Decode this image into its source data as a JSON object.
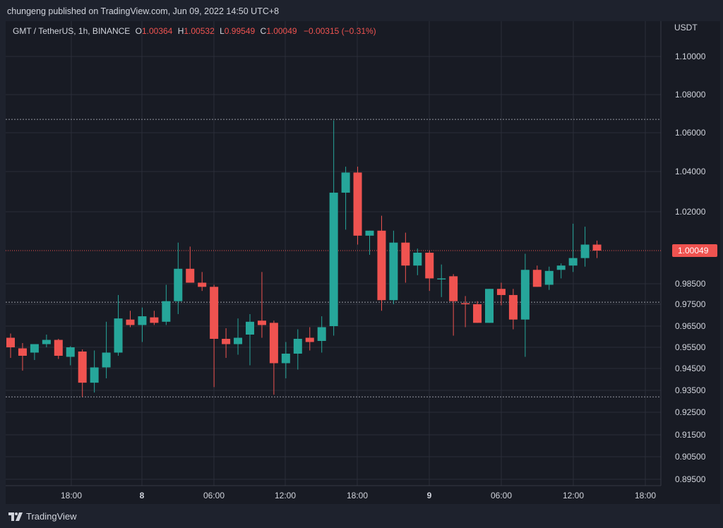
{
  "header": {
    "published": "chungeng published on TradingView.com, Jun 09, 2022 14:50 UTC+8"
  },
  "legend": {
    "symbol": "GMT / TetherUS, 1h, BINANCE",
    "o_label": "O",
    "o_value": "1.00364",
    "h_label": "H",
    "h_value": "1.00532",
    "l_label": "L",
    "l_value": "0.99549",
    "c_label": "C",
    "c_value": "1.00049",
    "change": "−0.00315 (−0.31%)"
  },
  "footer": {
    "brand": "TradingView"
  },
  "colors": {
    "up": "#26a69a",
    "down": "#ef5350",
    "grid": "#2a2e39",
    "price_line": "#ef5350",
    "hline": "#9598a1",
    "text": "#d1d4dc"
  },
  "chart_data": {
    "type": "candlestick",
    "currency": "USDT",
    "last_price": "1.00049",
    "y_ticks": [
      "1.10000",
      "1.08000",
      "1.06000",
      "1.04000",
      "1.02000",
      "0.98500",
      "0.97500",
      "0.96500",
      "0.95500",
      "0.94500",
      "0.93500",
      "0.92500",
      "0.91500",
      "0.90500",
      "0.89500"
    ],
    "x_ticks": [
      "18:00",
      "8",
      "06:00",
      "12:00",
      "18:00",
      "9",
      "06:00",
      "12:00",
      "18:00"
    ],
    "horizontal_lines": [
      1.067,
      0.976,
      0.932
    ],
    "ohlc": [
      [
        0.9595,
        0.9615,
        0.95,
        0.955
      ],
      [
        0.9545,
        0.957,
        0.944,
        0.951
      ],
      [
        0.9525,
        0.9565,
        0.949,
        0.9565
      ],
      [
        0.9565,
        0.961,
        0.955,
        0.9585
      ],
      [
        0.9585,
        0.959,
        0.9495,
        0.951
      ],
      [
        0.9505,
        0.9555,
        0.9465,
        0.955
      ],
      [
        0.953,
        0.954,
        0.932,
        0.9385
      ],
      [
        0.9385,
        0.9535,
        0.934,
        0.9455
      ],
      [
        0.9455,
        0.967,
        0.9405,
        0.9525
      ],
      [
        0.9525,
        0.9795,
        0.951,
        0.9685
      ],
      [
        0.968,
        0.972,
        0.9645,
        0.9655
      ],
      [
        0.9655,
        0.9735,
        0.9575,
        0.9695
      ],
      [
        0.969,
        0.972,
        0.9655,
        0.9665
      ],
      [
        0.967,
        0.9845,
        0.9655,
        0.9765
      ],
      [
        0.9765,
        1.0045,
        0.9705,
        0.992
      ],
      [
        0.992,
        1.0025,
        0.9855,
        0.9855
      ],
      [
        0.9855,
        0.9905,
        0.9815,
        0.9835
      ],
      [
        0.9835,
        0.9845,
        0.9365,
        0.959
      ],
      [
        0.959,
        0.964,
        0.95,
        0.9565
      ],
      [
        0.9565,
        0.9685,
        0.9515,
        0.9595
      ],
      [
        0.961,
        0.9705,
        0.9465,
        0.967
      ],
      [
        0.9675,
        0.9905,
        0.9595,
        0.9655
      ],
      [
        0.9665,
        0.9675,
        0.933,
        0.9475
      ],
      [
        0.9475,
        0.9575,
        0.9405,
        0.952
      ],
      [
        0.952,
        0.9635,
        0.9445,
        0.959
      ],
      [
        0.9595,
        0.9645,
        0.9535,
        0.9575
      ],
      [
        0.958,
        0.9695,
        0.9525,
        0.9645
      ],
      [
        0.965,
        1.0665,
        0.9605,
        1.0295
      ],
      [
        1.0295,
        1.0425,
        1.011,
        1.0395
      ],
      [
        1.0395,
        1.0425,
        1.0035,
        1.008
      ],
      [
        1.008,
        1.0105,
        0.9985,
        1.0105
      ],
      [
        1.0105,
        1.018,
        0.972,
        0.977
      ],
      [
        0.977,
        1.0105,
        0.975,
        1.0045
      ],
      [
        1.0045,
        1.0095,
        0.9855,
        0.9935
      ],
      [
        0.9935,
        1.0015,
        0.989,
        0.9995
      ],
      [
        0.9995,
        1.0005,
        0.9815,
        0.9875
      ],
      [
        0.9875,
        0.994,
        0.9785,
        0.9875
      ],
      [
        0.9885,
        0.9895,
        0.9605,
        0.9765
      ],
      [
        0.9755,
        0.979,
        0.9645,
        0.975
      ],
      [
        0.975,
        0.9765,
        0.9665,
        0.9665
      ],
      [
        0.9665,
        0.9825,
        0.9665,
        0.9825
      ],
      [
        0.9825,
        0.9855,
        0.9745,
        0.9795
      ],
      [
        0.9795,
        0.9825,
        0.9635,
        0.968
      ],
      [
        0.968,
        0.999,
        0.9505,
        0.9915
      ],
      [
        0.9915,
        0.9935,
        0.9835,
        0.9835
      ],
      [
        0.9845,
        0.993,
        0.982,
        0.991
      ],
      [
        0.9915,
        0.9945,
        0.9875,
        0.9935
      ],
      [
        0.9935,
        1.014,
        0.9905,
        0.997
      ],
      [
        0.997,
        1.0125,
        0.993,
        1.0035
      ],
      [
        1.0035,
        1.0055,
        0.997,
        1.0005
      ]
    ]
  }
}
